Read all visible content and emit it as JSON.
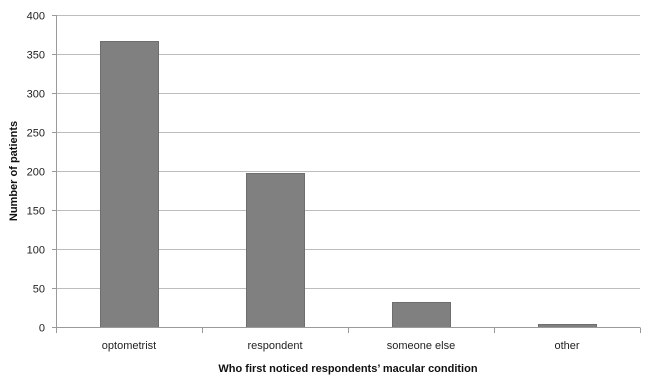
{
  "chart_data": {
    "type": "bar",
    "categories": [
      "optometrist",
      "respondent",
      "someone else",
      "other"
    ],
    "values": [
      367,
      198,
      32,
      4
    ],
    "xlabel": "Who first noticed respondents’ macular condition",
    "ylabel": "Number of patients",
    "ylim": [
      0,
      400
    ],
    "yticks": [
      0,
      50,
      100,
      150,
      200,
      250,
      300,
      350,
      400
    ],
    "grid": true,
    "colors": {
      "bar": "#808080"
    }
  }
}
